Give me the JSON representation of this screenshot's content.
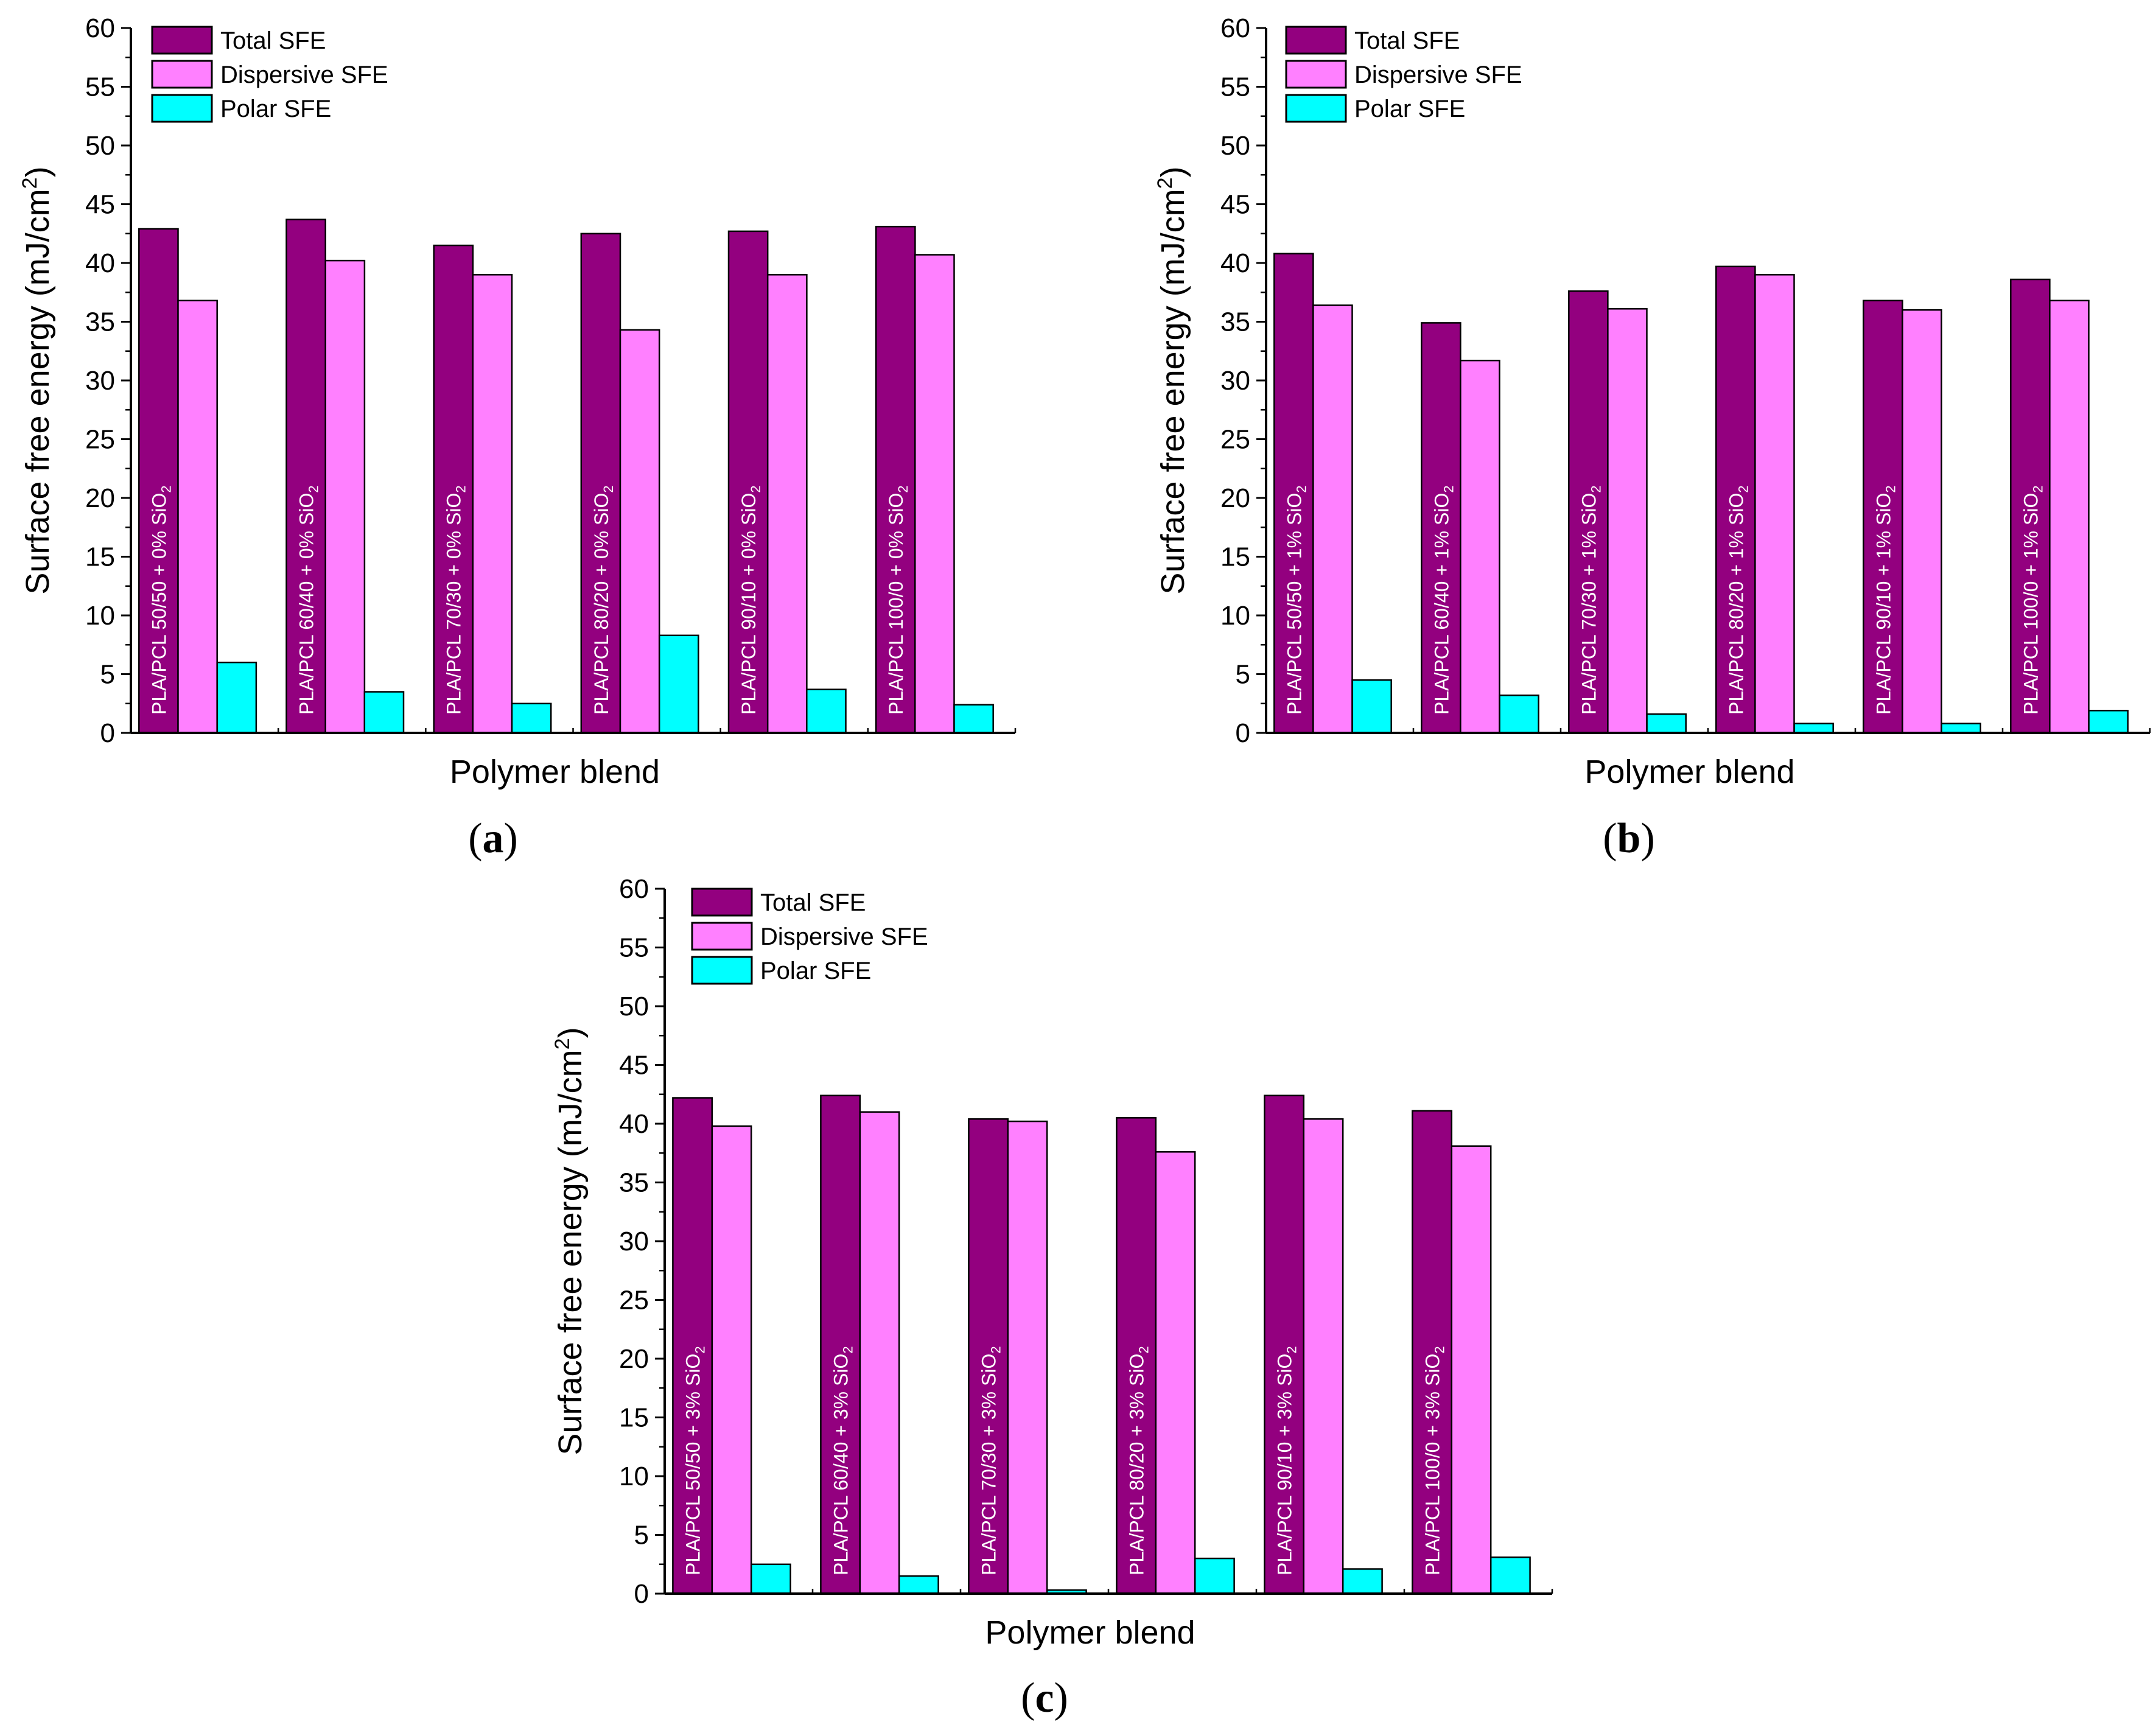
{
  "colors": {
    "total": "#93007f",
    "dispersive": "#ff80ff",
    "polar": "#00ffff",
    "stroke": "#000000"
  },
  "chart_data": [
    {
      "type": "bar",
      "panel": "(a)",
      "panel_open": "(",
      "panel_letter": "a",
      "panel_close": ")",
      "xlabel": "Polymer blend",
      "ylabel_main": "Surface free energy (mJ/cm",
      "ylabel_sup": "2",
      "ylabel_end": ")",
      "ylim": [
        0,
        60
      ],
      "yticks": [
        "0",
        "5",
        "10",
        "15",
        "20",
        "25",
        "30",
        "35",
        "40",
        "45",
        "50",
        "55",
        "60"
      ],
      "categories": [
        "PLA/PCL 50/50 + 0% SiO",
        "PLA/PCL 60/40 + 0% SiO",
        "PLA/PCL 70/30 + 0% SiO",
        "PLA/PCL 80/20 + 0% SiO",
        "PLA/PCL 90/10 + 0% SiO",
        "PLA/PCL 100/0 + 0% SiO"
      ],
      "category_subscript": "2",
      "series": [
        {
          "name": "Total SFE",
          "values": [
            42.9,
            43.7,
            41.5,
            42.5,
            42.7,
            43.1
          ]
        },
        {
          "name": "Dispersive SFE",
          "values": [
            36.8,
            40.2,
            39.0,
            34.3,
            39.0,
            40.7
          ]
        },
        {
          "name": "Polar SFE",
          "values": [
            6.0,
            3.5,
            2.5,
            8.3,
            3.7,
            2.4
          ]
        }
      ],
      "legend_position": "top-left"
    },
    {
      "type": "bar",
      "panel": "(b)",
      "panel_open": "(",
      "panel_letter": "b",
      "panel_close": ")",
      "xlabel": "Polymer blend",
      "ylabel_main": "Surface free energy (mJ/cm",
      "ylabel_sup": "2",
      "ylabel_end": ")",
      "ylim": [
        0,
        60
      ],
      "yticks": [
        "0",
        "5",
        "10",
        "15",
        "20",
        "25",
        "30",
        "35",
        "40",
        "45",
        "50",
        "55",
        "60"
      ],
      "categories": [
        "PLA/PCL 50/50 + 1% SiO",
        "PLA/PCL 60/40 + 1% SiO",
        "PLA/PCL 70/30 + 1% SiO",
        "PLA/PCL 80/20 + 1% SiO",
        "PLA/PCL 90/10 + 1% SiO",
        "PLA/PCL 100/0 + 1% SiO"
      ],
      "category_subscript": "2",
      "series": [
        {
          "name": "Total SFE",
          "values": [
            40.8,
            34.9,
            37.6,
            39.7,
            36.8,
            38.6
          ]
        },
        {
          "name": "Dispersive SFE",
          "values": [
            36.4,
            31.7,
            36.1,
            39.0,
            36.0,
            36.8
          ]
        },
        {
          "name": "Polar SFE",
          "values": [
            4.5,
            3.2,
            1.6,
            0.8,
            0.8,
            1.9
          ]
        }
      ],
      "legend_position": "top-left"
    },
    {
      "type": "bar",
      "panel": "(c)",
      "panel_open": "(",
      "panel_letter": "c",
      "panel_close": ")",
      "xlabel": "Polymer blend",
      "ylabel_main": "Surface free energy (mJ/cm",
      "ylabel_sup": "2",
      "ylabel_end": ")",
      "ylim": [
        0,
        60
      ],
      "yticks": [
        "0",
        "5",
        "10",
        "15",
        "20",
        "25",
        "30",
        "35",
        "40",
        "45",
        "50",
        "55",
        "60"
      ],
      "categories": [
        "PLA/PCL 50/50 + 3% SiO",
        "PLA/PCL 60/40 + 3% SiO",
        "PLA/PCL 70/30 + 3% SiO",
        "PLA/PCL 80/20 + 3% SiO",
        "PLA/PCL 90/10 + 3% SiO",
        "PLA/PCL 100/0 + 3% SiO"
      ],
      "category_subscript": "2",
      "series": [
        {
          "name": "Total SFE",
          "values": [
            42.2,
            42.4,
            40.4,
            40.5,
            42.4,
            41.1
          ]
        },
        {
          "name": "Dispersive SFE",
          "values": [
            39.8,
            41.0,
            40.2,
            37.6,
            40.4,
            38.1
          ]
        },
        {
          "name": "Polar SFE",
          "values": [
            2.5,
            1.5,
            0.3,
            3.0,
            2.1,
            3.1
          ]
        }
      ],
      "legend_position": "top-left"
    }
  ]
}
